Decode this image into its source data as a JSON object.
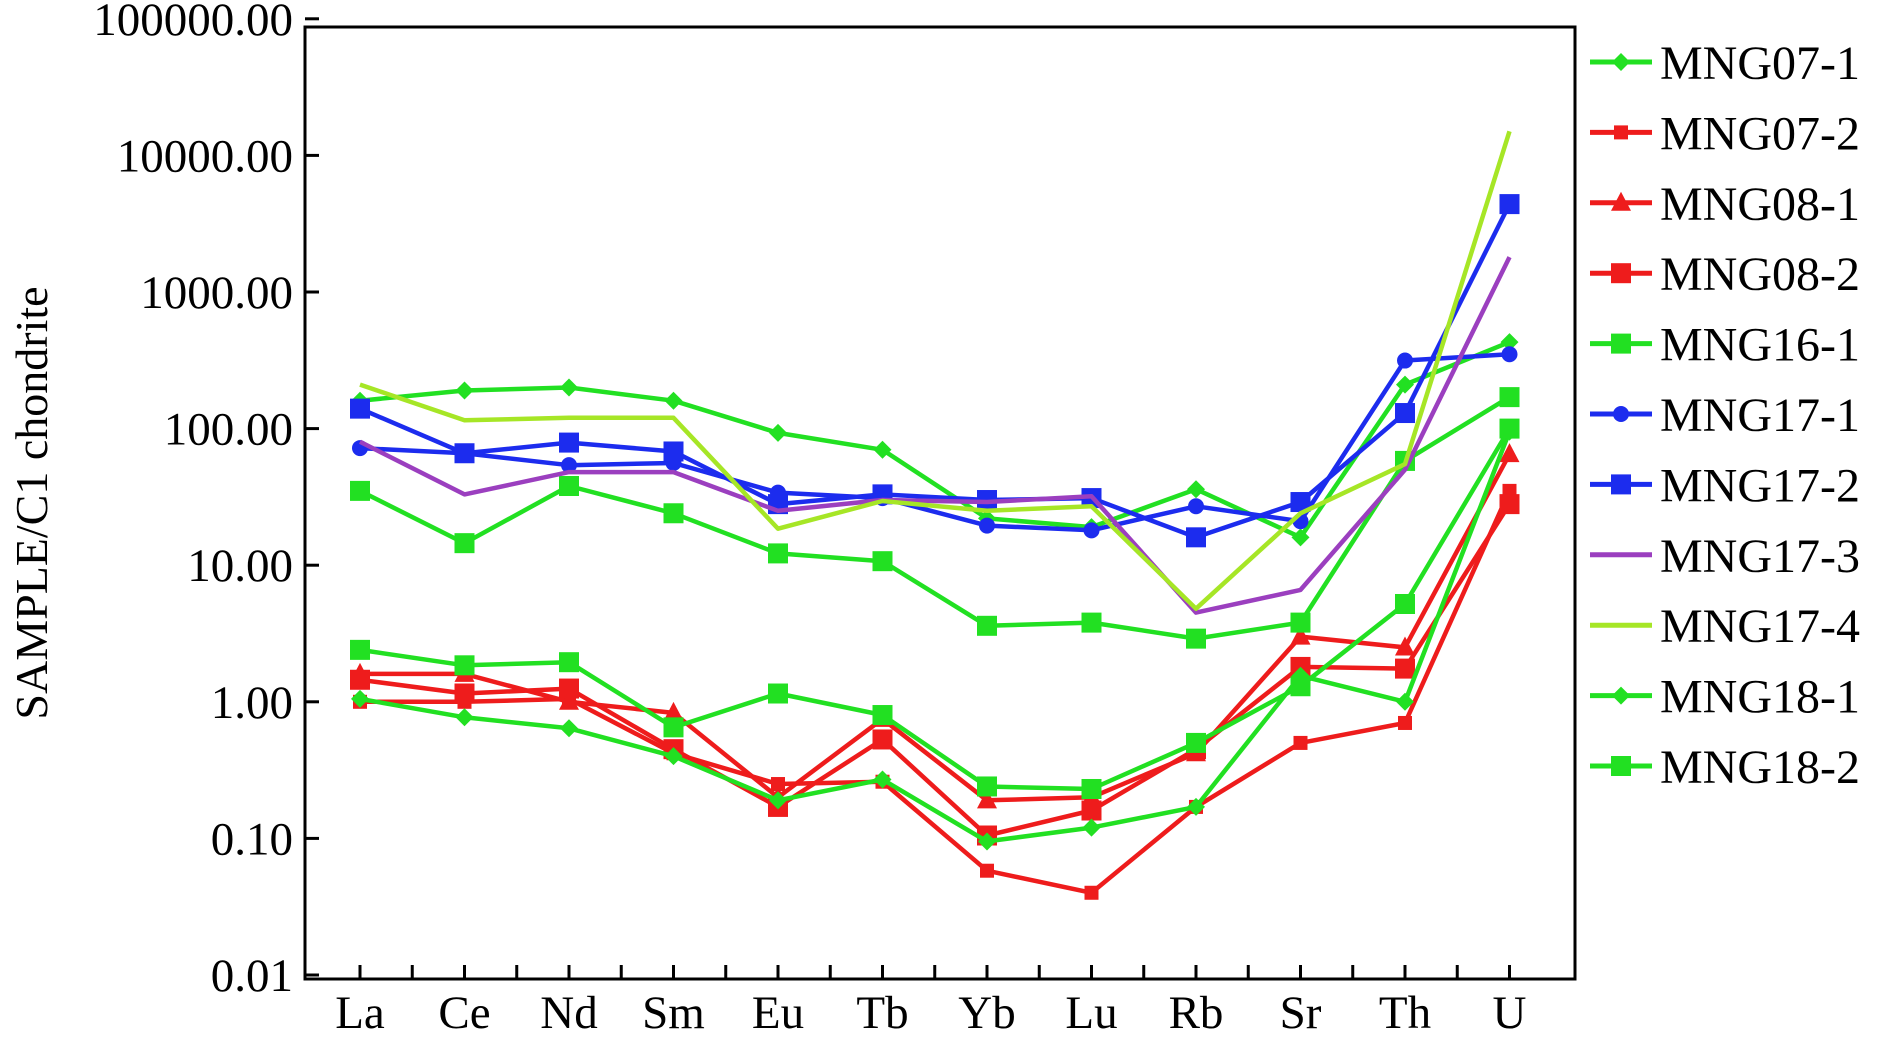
{
  "chart_data": {
    "type": "line",
    "title": "",
    "xlabel": "",
    "ylabel": "SAMPLE/C1 chondrite",
    "yscale": "log",
    "ylim": [
      0.01,
      100000
    ],
    "ytick_labels": [
      "100000.00",
      "10000.00",
      "1000.00",
      "100.00",
      "10.00",
      "1.00",
      "0.10",
      "0.01"
    ],
    "ytick_values": [
      100000,
      10000,
      1000,
      100,
      10,
      1,
      0.1,
      0.01
    ],
    "categories": [
      "La",
      "Ce",
      "Nd",
      "Sm",
      "Eu",
      "Tb",
      "Yb",
      "Lu",
      "Rb",
      "Sr",
      "Th",
      "U"
    ],
    "legend_position": "right",
    "series": [
      {
        "name": "MNG07-1",
        "color": "#22e022",
        "marker": "diamond",
        "values": [
          160,
          190,
          200,
          160,
          93,
          70,
          22,
          19,
          36,
          16,
          210,
          430
        ]
      },
      {
        "name": "MNG07-2",
        "color": "#ee1c1c",
        "marker": "small-square",
        "values": [
          1.0,
          1.0,
          1.05,
          0.42,
          0.25,
          0.26,
          0.058,
          0.04,
          0.17,
          0.5,
          0.7,
          35
        ]
      },
      {
        "name": "MNG08-1",
        "color": "#ee1c1c",
        "marker": "triangle",
        "values": [
          1.6,
          1.6,
          1.0,
          0.83,
          0.2,
          0.75,
          0.19,
          0.2,
          0.42,
          3.0,
          2.5,
          65
        ]
      },
      {
        "name": "MNG08-2",
        "color": "#ee1c1c",
        "marker": "square",
        "values": [
          1.45,
          1.15,
          1.25,
          0.45,
          0.17,
          0.53,
          0.105,
          0.16,
          0.45,
          1.8,
          1.75,
          28
        ]
      },
      {
        "name": "MNG16-1",
        "color": "#22e022",
        "marker": "square",
        "values": [
          35,
          14.5,
          38,
          24,
          12.2,
          10.7,
          3.6,
          3.8,
          2.9,
          3.8,
          58,
          170
        ]
      },
      {
        "name": "MNG17-1",
        "color": "#1c2cee",
        "marker": "circle",
        "values": [
          72,
          66,
          54,
          56,
          34,
          31,
          19.5,
          18,
          27,
          21,
          315,
          350
        ]
      },
      {
        "name": "MNG17-2",
        "color": "#1c2cee",
        "marker": "square",
        "values": [
          140,
          66,
          79,
          68,
          28,
          33,
          30,
          31,
          16,
          29,
          130,
          4400
        ]
      },
      {
        "name": "MNG17-3",
        "color": "#9b3fbf",
        "marker": "none",
        "values": [
          80,
          33,
          48,
          48,
          25,
          30,
          29,
          32,
          4.5,
          6.6,
          50,
          1800
        ]
      },
      {
        "name": "MNG17-4",
        "color": "#a6e626",
        "marker": "none",
        "values": [
          210,
          115,
          120,
          120,
          18.5,
          29.5,
          25,
          27,
          4.8,
          24,
          55,
          15000
        ]
      },
      {
        "name": "MNG18-1",
        "color": "#22e022",
        "marker": "diamond",
        "values": [
          1.05,
          0.77,
          0.64,
          0.4,
          0.19,
          0.27,
          0.095,
          0.12,
          0.17,
          1.55,
          1.0,
          95
        ]
      },
      {
        "name": "MNG18-2",
        "color": "#22e022",
        "marker": "square",
        "values": [
          2.4,
          1.85,
          1.95,
          0.65,
          1.15,
          0.8,
          0.24,
          0.23,
          0.5,
          1.3,
          5.2,
          100
        ]
      }
    ]
  }
}
